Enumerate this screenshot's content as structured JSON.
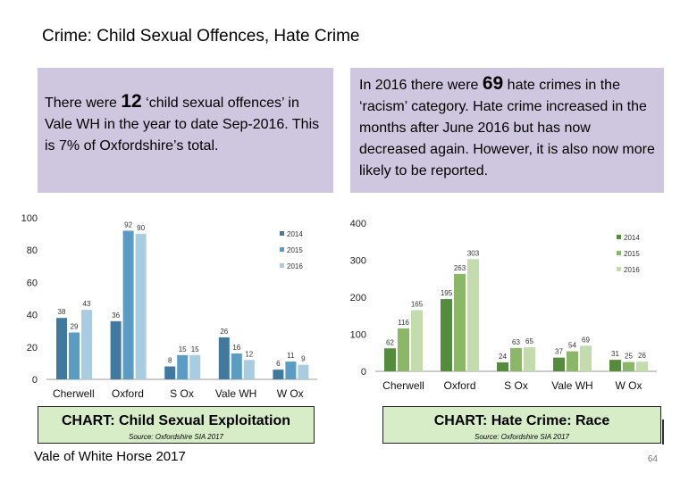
{
  "title": "Crime: Child Sexual Offences, Hate Crime",
  "box1": {
    "pre": "There were ",
    "number": "12",
    "post": " ‘child sexual offences’ in Vale WH in the year to date Sep-2016.  This is 7% of Oxfordshire’s total."
  },
  "box2": {
    "pre": "In 2016 there were ",
    "number": "69",
    "post": " hate crimes in the ‘racism’ category.  Hate crime increased in the months after June 2016 but has now decreased again. However, it is also now more likely to be reported."
  },
  "footer": "Vale of White Horse 2017",
  "page_number": "64",
  "colors": {
    "s2014": "#548b3c",
    "s2015": "#9bc47a",
    "s2016": "#cfe3bf",
    "caption_bg": "#d6edc7",
    "box_bg": "#cfc7df"
  },
  "chart_data": [
    {
      "type": "bar",
      "title": "CHART: Child Sexual Exploitation",
      "source": "Source: Oxfordshire SIA 2017",
      "categories": [
        "Cherwell",
        "Oxford",
        "S Ox",
        "Vale WH",
        "W Ox"
      ],
      "series": [
        {
          "name": "2014",
          "values": [
            38,
            36,
            8,
            26,
            6
          ]
        },
        {
          "name": "2015",
          "values": [
            29,
            92,
            15,
            16,
            11
          ]
        },
        {
          "name": "2016",
          "values": [
            43,
            90,
            15,
            12,
            9
          ]
        }
      ],
      "ylim": [
        0,
        100
      ],
      "yticks": [
        0,
        20,
        40,
        60,
        80,
        100
      ],
      "legend_position": "top-right",
      "grid": false,
      "colors": [
        "#3f79a0",
        "#5a9cc4",
        "#a8cce0"
      ]
    },
    {
      "type": "bar",
      "title": "CHART: Hate Crime: Race",
      "source": "Source: Oxfordshire SIA 2017",
      "categories": [
        "Cherwell",
        "Oxford",
        "S Ox",
        "Vale WH",
        "W Ox"
      ],
      "series": [
        {
          "name": "2014",
          "values": [
            62,
            195,
            24,
            37,
            31
          ]
        },
        {
          "name": "2015",
          "values": [
            116,
            263,
            63,
            54,
            25
          ]
        },
        {
          "name": "2016",
          "values": [
            165,
            303,
            65,
            69,
            26
          ]
        }
      ],
      "ylim": [
        0,
        400
      ],
      "yticks": [
        0,
        100,
        200,
        300,
        400
      ],
      "legend_position": "top-right",
      "grid": false,
      "colors": [
        "#548b3c",
        "#8ab866",
        "#c3dcae"
      ]
    }
  ]
}
